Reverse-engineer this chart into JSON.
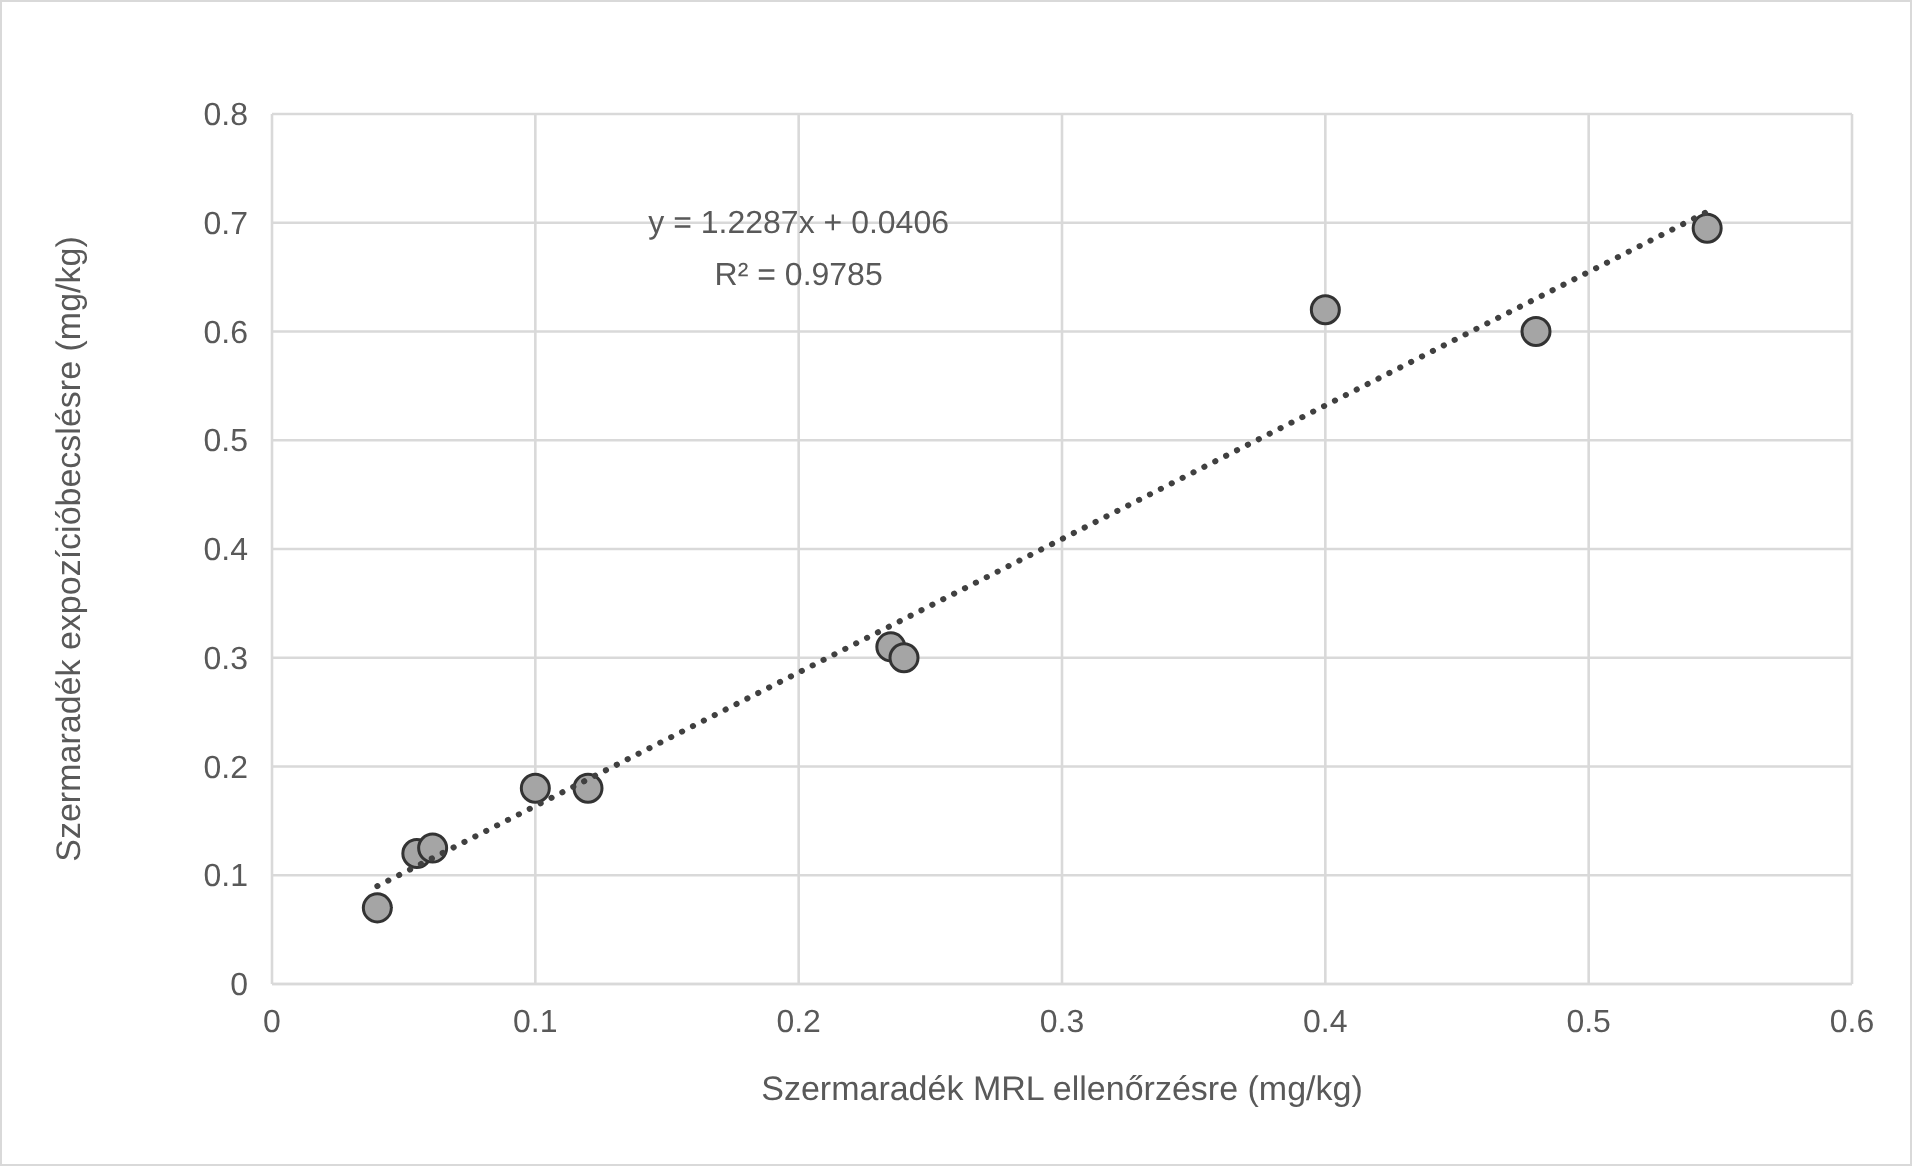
{
  "chart_data": {
    "type": "scatter",
    "xlabel": "Szermaradék MRL ellenőrzésre (mg/kg)",
    "ylabel": "Szermaradék expozícióbecslésre (mg/kg)",
    "annotations": [
      "y = 1.2287x + 0.0406",
      "R² = 0.9785"
    ],
    "xlim": [
      0,
      0.6
    ],
    "xticks": [
      0,
      0.1,
      0.2,
      0.3,
      0.4,
      0.5,
      0.6
    ],
    "ylim": [
      0,
      0.8
    ],
    "yticks": [
      0,
      0.1,
      0.2,
      0.3,
      0.4,
      0.5,
      0.6,
      0.7,
      0.8
    ],
    "grid": true,
    "series": [
      {
        "color": "#a5a5a5",
        "marker": "circle",
        "x": [
          0.04,
          0.055,
          0.061,
          0.1,
          0.12,
          0.235,
          0.24,
          0.4,
          0.48,
          0.545
        ],
        "values": [
          0.07,
          0.12,
          0.125,
          0.18,
          0.18,
          0.31,
          0.3,
          0.62,
          0.6,
          0.695
        ]
      },
      {
        "type": "line",
        "color": "#404040",
        "line_style": "dotted",
        "x": [
          0.04,
          0.545
        ],
        "values": [
          0.09,
          0.71
        ]
      }
    ]
  }
}
